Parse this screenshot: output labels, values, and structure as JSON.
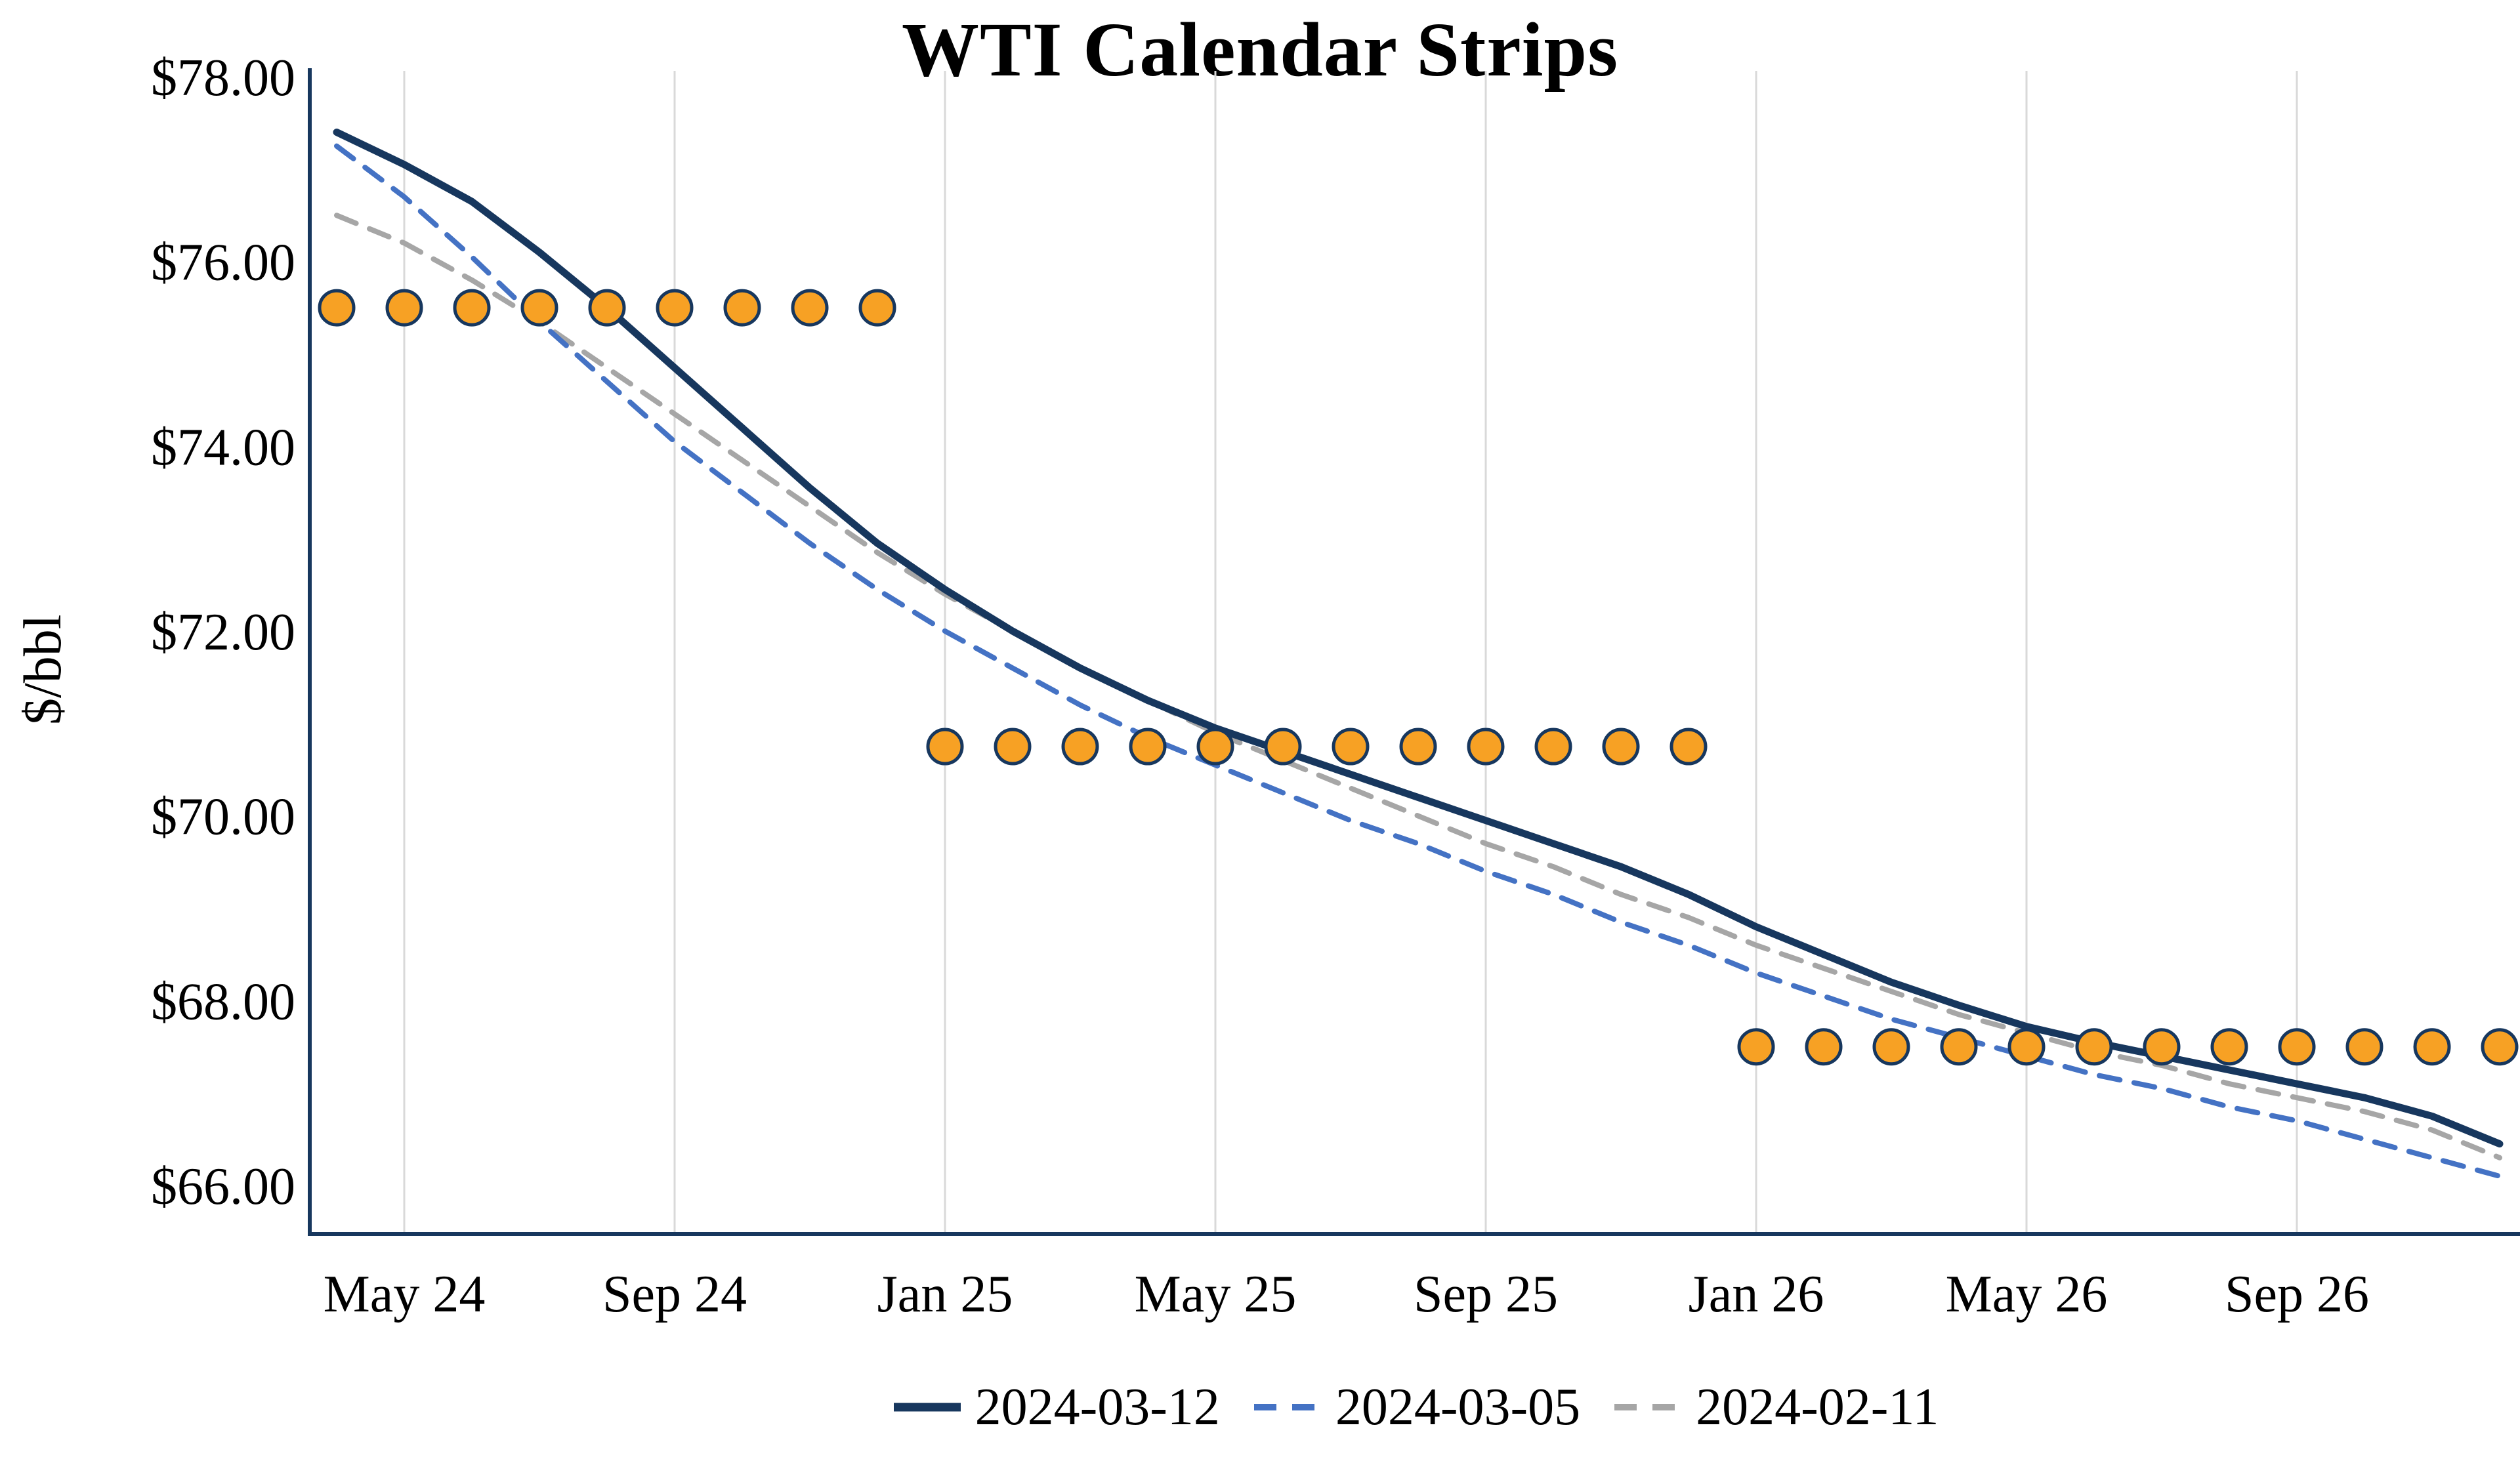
{
  "chart_data": {
    "type": "line",
    "title": "WTI Calendar Strips",
    "xlabel": "",
    "ylabel": "$/bbl",
    "ylim": [
      66,
      78
    ],
    "grid": "vertical",
    "legend_position": "bottom",
    "colors": {
      "background": "#FFFFFF",
      "axis": "#17375E",
      "gridline": "#D9D9D9"
    },
    "months": [
      "Apr 24",
      "May 24",
      "Jun 24",
      "Jul 24",
      "Aug 24",
      "Sep 24",
      "Oct 24",
      "Nov 24",
      "Dec 24",
      "Jan 25",
      "Feb 25",
      "Mar 25",
      "Apr 25",
      "May 25",
      "Jun 25",
      "Jul 25",
      "Aug 25",
      "Sep 25",
      "Oct 25",
      "Nov 25",
      "Dec 25",
      "Jan 26",
      "Feb 26",
      "Mar 26",
      "Apr 26",
      "May 26",
      "Jun 26",
      "Jul 26",
      "Aug 26",
      "Sep 26",
      "Oct 26",
      "Nov 26",
      "Dec 26"
    ],
    "x_ticks": [
      "May 24",
      "Sep 24",
      "Jan 25",
      "May 25",
      "Sep 25",
      "Jan 26",
      "May 26",
      "Sep 26"
    ],
    "x_tick_indices": [
      1,
      5,
      9,
      13,
      17,
      21,
      25,
      29
    ],
    "y_ticks": [
      {
        "value": 78,
        "label": "$78.00"
      },
      {
        "value": 76,
        "label": "$76.00"
      },
      {
        "value": 74,
        "label": "$74.00"
      },
      {
        "value": 72,
        "label": "$72.00"
      },
      {
        "value": 70,
        "label": "$70.00"
      },
      {
        "value": 68,
        "label": "$68.00"
      },
      {
        "value": 66,
        "label": "$66.00"
      }
    ],
    "series": [
      {
        "name": "2024-03-12",
        "style": "solid",
        "color": "#17375E",
        "values": [
          77.4,
          77.05,
          76.65,
          76.1,
          75.5,
          74.85,
          74.2,
          73.55,
          72.95,
          72.45,
          72.0,
          71.6,
          71.25,
          70.95,
          70.7,
          70.45,
          70.2,
          69.95,
          69.7,
          69.45,
          69.15,
          68.8,
          68.5,
          68.2,
          67.95,
          67.72,
          67.55,
          67.4,
          67.25,
          67.1,
          66.95,
          66.75,
          66.45
        ]
      },
      {
        "name": "2024-03-05",
        "style": "dashed",
        "color": "#4472C4",
        "values": [
          77.25,
          76.7,
          76.05,
          75.35,
          74.7,
          74.05,
          73.5,
          72.95,
          72.45,
          72.0,
          71.6,
          71.2,
          70.85,
          70.55,
          70.25,
          69.95,
          69.7,
          69.4,
          69.15,
          68.85,
          68.6,
          68.3,
          68.05,
          67.8,
          67.6,
          67.4,
          67.2,
          67.05,
          66.85,
          66.7,
          66.5,
          66.3,
          66.1
        ]
      },
      {
        "name": "2024-02-11",
        "style": "dashed",
        "color": "#A6A6A6",
        "values": [
          76.5,
          76.2,
          75.8,
          75.35,
          74.85,
          74.35,
          73.85,
          73.35,
          72.85,
          72.4,
          72.0,
          71.6,
          71.25,
          70.9,
          70.6,
          70.3,
          70.0,
          69.7,
          69.45,
          69.15,
          68.9,
          68.6,
          68.35,
          68.1,
          67.85,
          67.65,
          67.45,
          67.3,
          67.1,
          66.95,
          66.8,
          66.6,
          66.3
        ]
      }
    ],
    "markers": {
      "shape": "circle",
      "color": "#F7A124",
      "outline": "#17375E",
      "strips": [
        {
          "value": 75.5,
          "start_index": 0,
          "end_index": 8
        },
        {
          "value": 70.75,
          "start_index": 9,
          "end_index": 20
        },
        {
          "value": 67.5,
          "start_index": 21,
          "end_index": 32
        }
      ]
    }
  }
}
